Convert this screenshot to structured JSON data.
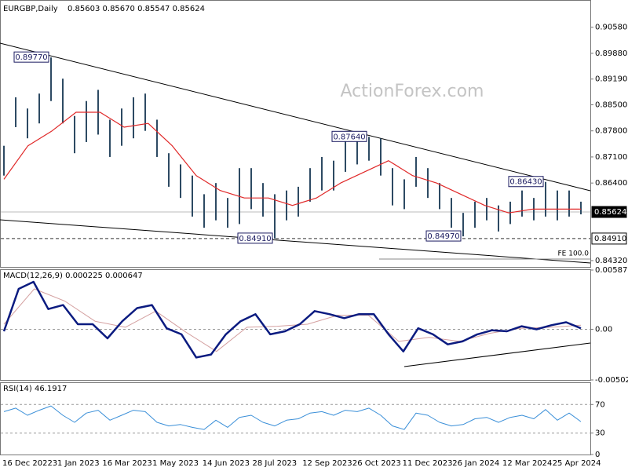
{
  "chart_data": [
    {
      "type": "ohlc",
      "title": "EURGBP,Daily",
      "subtitle": "0.85603 0.85670 0.85547 0.85624",
      "watermark": "ActionForex.com",
      "color": "#2d4a63",
      "high": [
        0.874,
        0.887,
        0.884,
        0.888,
        0.8977,
        0.892,
        0.882,
        0.886,
        0.889,
        0.881,
        0.884,
        0.887,
        0.888,
        0.881,
        0.872,
        0.869,
        0.866,
        0.861,
        0.864,
        0.86,
        0.868,
        0.868,
        0.864,
        0.861,
        0.862,
        0.863,
        0.868,
        0.871,
        0.87,
        0.876,
        0.876,
        0.8764,
        0.876,
        0.868,
        0.865,
        0.871,
        0.868,
        0.864,
        0.86,
        0.856,
        0.859,
        0.86,
        0.858,
        0.859,
        0.862,
        0.86,
        0.8643,
        0.862,
        0.862,
        0.859
      ],
      "low": [
        0.866,
        0.879,
        0.876,
        0.88,
        0.886,
        0.88,
        0.872,
        0.875,
        0.877,
        0.871,
        0.874,
        0.876,
        0.878,
        0.871,
        0.863,
        0.86,
        0.855,
        0.852,
        0.854,
        0.852,
        0.853,
        0.857,
        0.855,
        0.8491,
        0.854,
        0.855,
        0.859,
        0.862,
        0.862,
        0.867,
        0.869,
        0.87,
        0.866,
        0.858,
        0.857,
        0.863,
        0.86,
        0.857,
        0.852,
        0.8497,
        0.852,
        0.854,
        0.851,
        0.853,
        0.855,
        0.854,
        0.855,
        0.854,
        0.855,
        0.8556
      ],
      "ma": {
        "color": "#e02828",
        "values": [
          0.865,
          0.874,
          0.878,
          0.883,
          0.883,
          0.879,
          0.88,
          0.874,
          0.866,
          0.862,
          0.86,
          0.86,
          0.858,
          0.86,
          0.864,
          0.867,
          0.87,
          0.866,
          0.864,
          0.861,
          0.858,
          0.856,
          0.857,
          0.857,
          0.857
        ]
      },
      "ylim": [
        0.8415,
        0.9129
      ],
      "yticks": [
        {
          "value": 0.9058,
          "label": "0.90580"
        },
        {
          "value": 0.8988,
          "label": "0.89880"
        },
        {
          "value": 0.8919,
          "label": "0.89190"
        },
        {
          "value": 0.885,
          "label": "0.88500"
        },
        {
          "value": 0.878,
          "label": "0.87800"
        },
        {
          "value": 0.871,
          "label": "0.87100"
        },
        {
          "value": 0.864,
          "label": "0.86400"
        },
        {
          "value": 0.8432,
          "label": "0.84320"
        }
      ],
      "price_tags": [
        0.85624,
        {
          "value": 0.8491,
          "label": "0.84910"
        }
      ],
      "annotations": [
        {
          "value": 0.8977,
          "label": "0.89770"
        },
        {
          "value": 0.8764,
          "label": "0.87640"
        },
        {
          "value": 0.8643,
          "label": "0.86430"
        },
        {
          "value": 0.8491,
          "label": "0.84910"
        },
        {
          "value": 0.8497,
          "label": "0.84970"
        }
      ],
      "fe_label": "FE 100.0",
      "dates": [
        "16 Dec 2022",
        "31 Jan 2023",
        "16 Mar 2023",
        "1 May 2023",
        "14 Jun 2023",
        "28 Jul 2023",
        "12 Sep 2023",
        "26 Oct 2023",
        "11 Dec 2023",
        "26 Jan 2024",
        "12 Mar 2024",
        "25 Apr 2024"
      ]
    },
    {
      "type": "macd",
      "title": "MACD(12,26,9) 0.000225 0.000647",
      "macd": {
        "color": "#0b1b80",
        "values": [
          -0.0002,
          0.004,
          0.0047,
          0.002,
          0.0024,
          0.0005,
          0.0005,
          -0.0009,
          0.0008,
          0.0021,
          0.0024,
          0.0001,
          -0.0005,
          -0.0028,
          -0.0025,
          -0.0005,
          0.0008,
          0.0015,
          -0.0005,
          -0.0002,
          0.0005,
          0.0018,
          0.0015,
          0.0011,
          0.0015,
          0.0015,
          -0.0005,
          -0.0022,
          0.0001,
          -0.0005,
          -0.0015,
          -0.0012,
          -0.0005,
          -0.0001,
          -0.0002,
          0.0003,
          0,
          0.0004,
          0.0007,
          0.0001
        ]
      },
      "signal": {
        "color": "#d4a0a0",
        "values": [
          0.0005,
          0.004,
          0.0028,
          0.0008,
          0.0002,
          0.0018,
          -0.0003,
          -0.0022,
          0.0002,
          0.0003,
          0.0005,
          0.0014,
          0.0014,
          -0.0012,
          -0.0008,
          -0.0012,
          -0.0004,
          0.0001,
          0.0002,
          0.0004
        ]
      },
      "ylim": [
        -0.005021,
        0.00587
      ],
      "yticks": [
        0.00587,
        {
          "value": 0,
          "label": "0.00"
        },
        -0.005021
      ]
    },
    {
      "type": "rsi",
      "title": "RSI(14) 46.1917",
      "color": "#3a8fd8",
      "values": [
        60,
        65,
        55,
        62,
        68,
        55,
        45,
        58,
        62,
        48,
        55,
        62,
        60,
        45,
        40,
        42,
        38,
        35,
        48,
        38,
        52,
        55,
        45,
        40,
        48,
        50,
        58,
        60,
        55,
        62,
        60,
        65,
        55,
        40,
        35,
        58,
        55,
        45,
        40,
        42,
        50,
        52,
        45,
        52,
        55,
        50,
        63,
        48,
        58,
        46
      ],
      "ylim": [
        0,
        100
      ],
      "yticks": [
        70,
        30,
        0
      ]
    }
  ]
}
